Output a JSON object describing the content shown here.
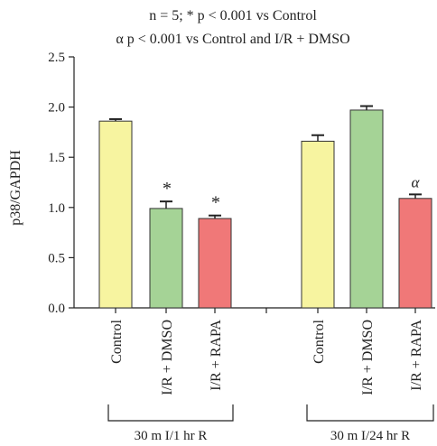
{
  "chart_data": {
    "type": "bar",
    "title_line1": "n = 5; * p < 0.001 vs Control",
    "title_line2": "α p < 0.001 vs Control and I/R + DMSO",
    "ylabel": "p38/GAPDH",
    "ylim": [
      0,
      2.5
    ],
    "yticks": [
      "0.0",
      "0.5",
      "1.0",
      "1.5",
      "2.0",
      "2.5"
    ],
    "categories": [
      "Control",
      "I/R + DMSO",
      "I/R + RAPA",
      "Control",
      "I/R + DMSO",
      "I/R + RAPA"
    ],
    "values": [
      1.86,
      0.99,
      0.89,
      1.66,
      1.97,
      1.09
    ],
    "errors": [
      0.02,
      0.07,
      0.03,
      0.06,
      0.04,
      0.04
    ],
    "significance": [
      "",
      "*",
      "*",
      "",
      "",
      "α"
    ],
    "group_labels": [
      "30 m I/1 hr R",
      "30 m I/24 hr R"
    ],
    "colors": [
      "#f7f4a0",
      "#a5d396",
      "#f07878",
      "#f7f4a0",
      "#a5d396",
      "#f07878"
    ]
  }
}
